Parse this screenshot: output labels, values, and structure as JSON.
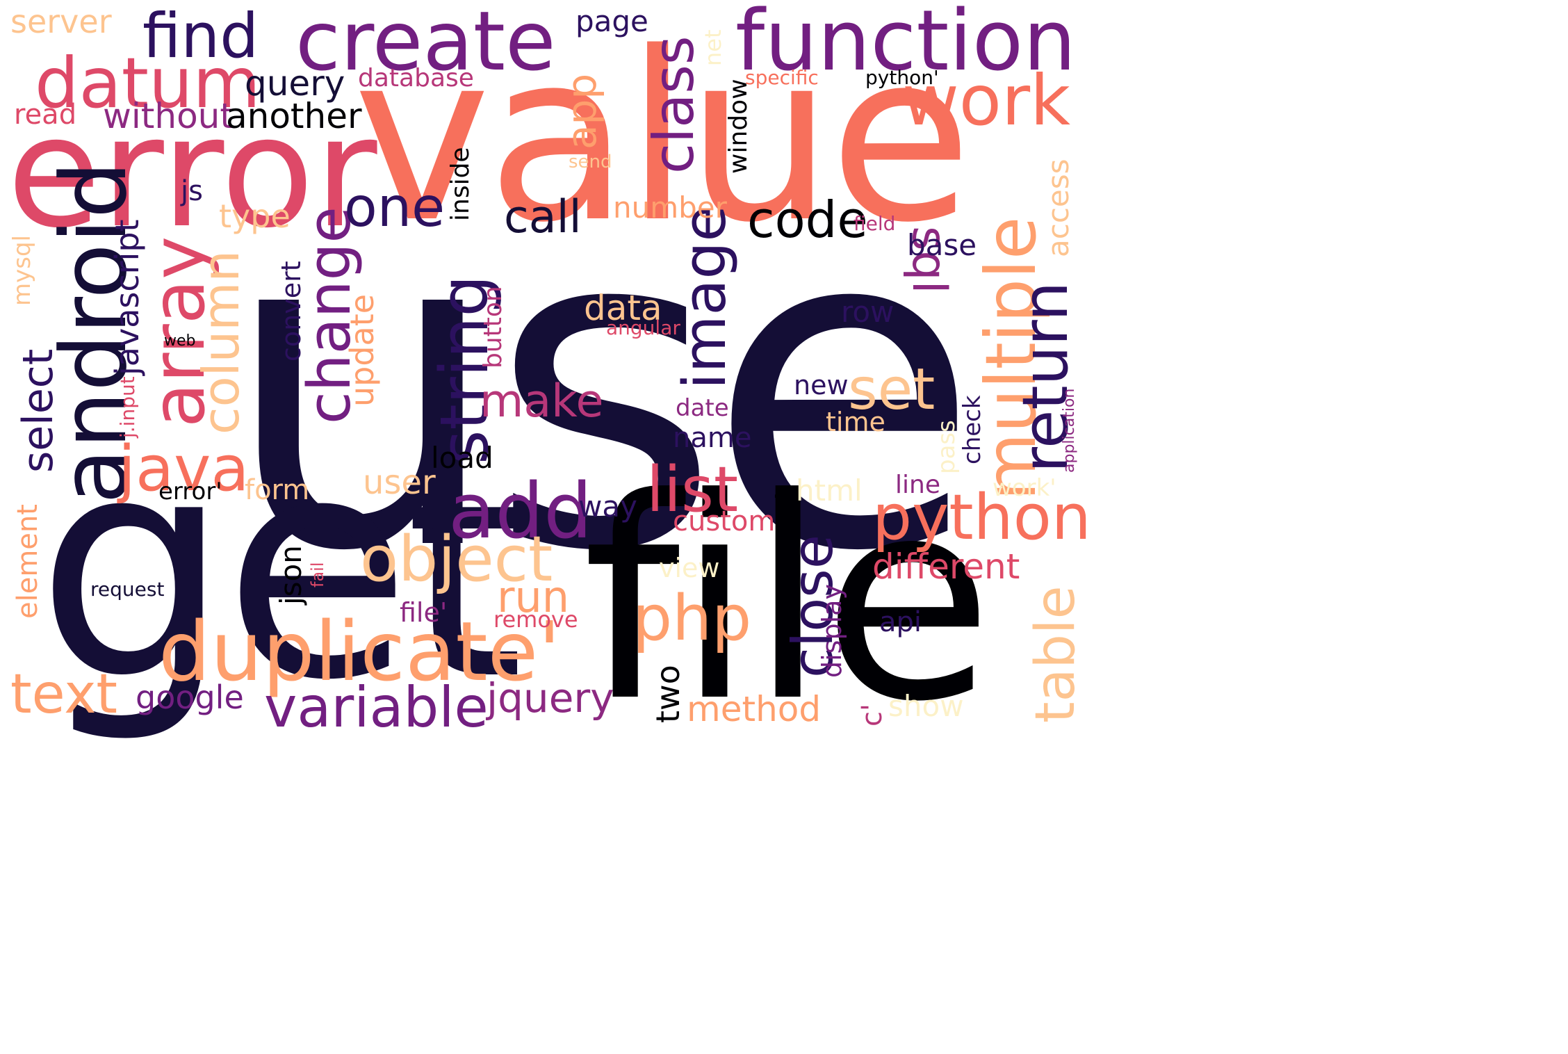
{
  "palette": {
    "dark": "#140e36",
    "black": "#000004",
    "indigo": "#2c115f",
    "purple": "#721f81",
    "magenta": "#8c2981",
    "rose": "#b73779",
    "red": "#de4968",
    "coral": "#f7705c",
    "orange": "#fe9f6d",
    "peach": "#fdc48f",
    "cream": "#fcf1c8"
  },
  "words": [
    {
      "text": "use",
      "color": "#140e36"
    },
    {
      "text": "value",
      "color": "#f7705c"
    },
    {
      "text": "get",
      "color": "#140e36"
    },
    {
      "text": "file",
      "color": "#000004"
    },
    {
      "text": "error",
      "color": "#de4968"
    },
    {
      "text": "function",
      "color": "#721f81"
    },
    {
      "text": "create",
      "color": "#721f81"
    },
    {
      "text": "duplicate'",
      "color": "#fe9f6d"
    },
    {
      "text": "android",
      "color": "#140e36"
    },
    {
      "text": "array",
      "color": "#de4968"
    },
    {
      "text": "datum",
      "color": "#de4968"
    },
    {
      "text": "multiple",
      "color": "#fe9f6d"
    },
    {
      "text": "work",
      "color": "#f7705c"
    },
    {
      "text": "find",
      "color": "#2c115f"
    },
    {
      "text": "class",
      "color": "#721f81"
    },
    {
      "text": "add",
      "color": "#721f81"
    },
    {
      "text": "list",
      "color": "#de4968"
    },
    {
      "text": "python",
      "color": "#f7705c"
    },
    {
      "text": "object",
      "color": "#fdc48f"
    },
    {
      "text": "string",
      "color": "#2c115f"
    },
    {
      "text": "change",
      "color": "#721f81"
    },
    {
      "text": "image",
      "color": "#2c115f"
    },
    {
      "text": "return",
      "color": "#2c115f"
    },
    {
      "text": "java",
      "color": "#f7705c"
    },
    {
      "text": "column",
      "color": "#fdc48f"
    },
    {
      "text": "variable",
      "color": "#721f81"
    },
    {
      "text": "code",
      "color": "#000004"
    },
    {
      "text": "one",
      "color": "#2c115f"
    },
    {
      "text": "set",
      "color": "#fdc48f"
    },
    {
      "text": "table",
      "color": "#fdc48f"
    },
    {
      "text": "php",
      "color": "#fe9f6d"
    },
    {
      "text": "close",
      "color": "#2c115f"
    },
    {
      "text": "text",
      "color": "#fe9f6d"
    },
    {
      "text": "sql",
      "color": "#8c2981"
    },
    {
      "text": "make",
      "color": "#b73779"
    },
    {
      "text": "run",
      "color": "#fe9f6d"
    },
    {
      "text": "call",
      "color": "#140e36"
    },
    {
      "text": "app",
      "color": "#fe9f6d"
    },
    {
      "text": "select",
      "color": "#2c115f"
    },
    {
      "text": "javascript",
      "color": "#2c115f"
    },
    {
      "text": "jquery",
      "color": "#8c2981"
    },
    {
      "text": "different",
      "color": "#de4968"
    },
    {
      "text": "query",
      "color": "#140e36"
    },
    {
      "text": "without",
      "color": "#8c2981"
    },
    {
      "text": "another",
      "color": "#000004"
    },
    {
      "text": "update",
      "color": "#fe9f6d"
    },
    {
      "text": "access",
      "color": "#fdc48f"
    },
    {
      "text": "data",
      "color": "#fdc48f"
    },
    {
      "text": "user",
      "color": "#fdc48f"
    },
    {
      "text": "method",
      "color": "#fe9f6d"
    },
    {
      "text": "google",
      "color": "#721f81"
    },
    {
      "text": "two",
      "color": "#000004"
    },
    {
      "text": "server",
      "color": "#fdc48f"
    },
    {
      "text": "page",
      "color": "#2c115f"
    },
    {
      "text": "database",
      "color": "#b73779"
    },
    {
      "text": "read",
      "color": "#de4968"
    },
    {
      "text": "type",
      "color": "#fdc48f"
    },
    {
      "text": "number",
      "color": "#fe9f6d"
    },
    {
      "text": "row",
      "color": "#2c115f"
    },
    {
      "text": "base",
      "color": "#2c115f"
    },
    {
      "text": "element",
      "color": "#fe9f6d"
    },
    {
      "text": "inside",
      "color": "#000004"
    },
    {
      "text": "convert",
      "color": "#2c115f"
    },
    {
      "text": "button",
      "color": "#b73779"
    },
    {
      "text": "html",
      "color": "#fcf1c8"
    },
    {
      "text": "custom",
      "color": "#de4968"
    },
    {
      "text": "display",
      "color": "#721f81"
    },
    {
      "text": "json",
      "color": "#000004"
    },
    {
      "text": "way",
      "color": "#2c115f"
    },
    {
      "text": "name",
      "color": "#2c115f"
    },
    {
      "text": "load",
      "color": "#000004"
    },
    {
      "text": "form",
      "color": "#fdc48f"
    },
    {
      "text": "new",
      "color": "#2c115f"
    },
    {
      "text": "time",
      "color": "#fdc48f"
    },
    {
      "text": "show",
      "color": "#fcf1c8"
    },
    {
      "text": "window",
      "color": "#000004"
    },
    {
      "text": "mysql",
      "color": "#fdc48f"
    },
    {
      "text": "js",
      "color": "#2c115f"
    },
    {
      "text": "api",
      "color": "#2c115f"
    },
    {
      "text": "date",
      "color": "#8c2981"
    },
    {
      "text": "view",
      "color": "#fcf1c8"
    },
    {
      "text": "file'",
      "color": "#8c2981"
    },
    {
      "text": "remove",
      "color": "#de4968"
    },
    {
      "text": "line",
      "color": "#8c2981"
    },
    {
      "text": "check",
      "color": "#2c115f"
    },
    {
      "text": "pass",
      "color": "#fcf1c8"
    },
    {
      "text": "work'",
      "color": "#fcf1c8"
    },
    {
      "text": "field",
      "color": "#b73779"
    },
    {
      "text": "error'",
      "color": "#000004"
    },
    {
      "text": "request",
      "color": "#140e36"
    },
    {
      "text": "python'",
      "color": "#000004"
    },
    {
      "text": "specific",
      "color": "#f7705c"
    },
    {
      "text": "net",
      "color": "#fcf1c8"
    },
    {
      "text": "send",
      "color": "#fdc48f"
    },
    {
      "text": "j.input",
      "color": "#de4968"
    },
    {
      "text": "angular",
      "color": "#de4968"
    },
    {
      "text": "application",
      "color": "#8c2981"
    },
    {
      "text": "web",
      "color": "#000004"
    },
    {
      "text": "fail",
      "color": "#de4968"
    },
    {
      "text": "c'",
      "color": "#b73779"
    },
    {
      "text": "-",
      "color": "#000004"
    }
  ]
}
